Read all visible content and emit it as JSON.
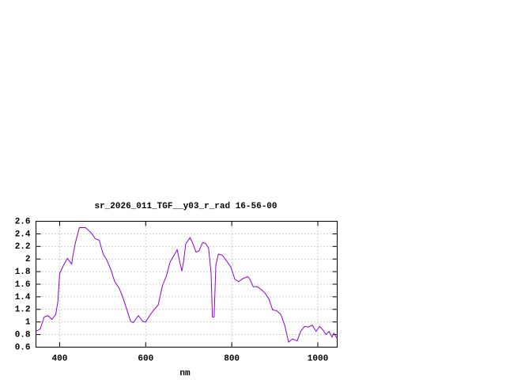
{
  "chart_data": {
    "type": "line",
    "title": "sr_2026_011_TGF__y03_r_rad 16-56-00",
    "x_label": "nm",
    "color": "#9400d3",
    "grid": true,
    "xlim": [
      345,
      1045
    ],
    "xticks": [
      400,
      600,
      800,
      1000
    ],
    "ylim": [
      0.6,
      2.6
    ],
    "yticks": [
      0.6,
      0.8,
      1,
      1.2,
      1.4,
      1.6,
      1.8,
      2,
      2.2,
      2.4,
      2.6
    ],
    "x": [
      345,
      355,
      364,
      373,
      382,
      391,
      396,
      400,
      409,
      418,
      428,
      431,
      437,
      446,
      460,
      473,
      483,
      492,
      501,
      510,
      519,
      528,
      538,
      547,
      556,
      565,
      571,
      583,
      593,
      600,
      611,
      620,
      629,
      639,
      648,
      657,
      666,
      673,
      680,
      684,
      688,
      693,
      703,
      708,
      717,
      724,
      732,
      739,
      746,
      752,
      755,
      759,
      763,
      769,
      778,
      789,
      798,
      807,
      816,
      826,
      837,
      842,
      850,
      859,
      868,
      877,
      886,
      895,
      904,
      914,
      923,
      932,
      941,
      952,
      960,
      969,
      978,
      987,
      996,
      1004,
      1011,
      1019,
      1026,
      1033,
      1037,
      1045
    ],
    "values": [
      0.85,
      0.89,
      1.08,
      1.1,
      1.04,
      1.12,
      1.33,
      1.77,
      1.9,
      2.01,
      1.92,
      2.06,
      2.27,
      2.5,
      2.5,
      2.42,
      2.32,
      2.3,
      2.08,
      1.98,
      1.83,
      1.64,
      1.54,
      1.39,
      1.2,
      1.01,
      0.99,
      1.1,
      1.01,
      1.0,
      1.12,
      1.2,
      1.27,
      1.58,
      1.73,
      1.96,
      2.06,
      2.15,
      1.93,
      1.81,
      1.96,
      2.24,
      2.34,
      2.27,
      2.11,
      2.13,
      2.26,
      2.25,
      2.18,
      1.77,
      1.08,
      1.08,
      1.9,
      2.08,
      2.06,
      1.96,
      1.87,
      1.68,
      1.64,
      1.69,
      1.72,
      1.68,
      1.56,
      1.56,
      1.52,
      1.46,
      1.37,
      1.19,
      1.18,
      1.12,
      0.95,
      0.68,
      0.73,
      0.7,
      0.85,
      0.93,
      0.92,
      0.95,
      0.85,
      0.93,
      0.88,
      0.8,
      0.85,
      0.76,
      0.82,
      0.74
    ]
  }
}
